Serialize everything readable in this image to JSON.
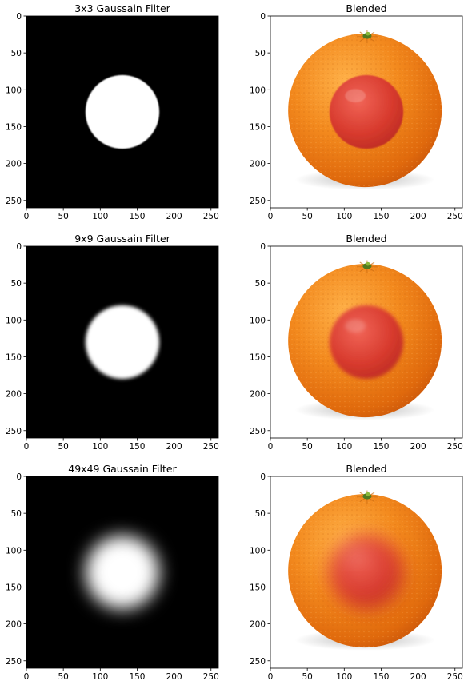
{
  "figure": {
    "panels": [
      {
        "title": "3x3 Gaussain Filter",
        "kind": "mask",
        "blur_sigma": 0.8,
        "x_ticks": [
          "0",
          "50",
          "100",
          "150",
          "200",
          "250"
        ],
        "y_ticks": [
          "0",
          "50",
          "100",
          "150",
          "200",
          "250"
        ]
      },
      {
        "title": "Blended",
        "kind": "blend",
        "blur_sigma": 0.8,
        "x_ticks": [
          "0",
          "50",
          "100",
          "150",
          "200",
          "250"
        ],
        "y_ticks": [
          "0",
          "50",
          "100",
          "150",
          "200",
          "250"
        ]
      },
      {
        "title": "9x9 Gaussain Filter",
        "kind": "mask",
        "blur_sigma": 2.5,
        "x_ticks": [
          "0",
          "50",
          "100",
          "150",
          "200",
          "250"
        ],
        "y_ticks": [
          "0",
          "50",
          "100",
          "150",
          "200",
          "250"
        ]
      },
      {
        "title": "Blended",
        "kind": "blend",
        "blur_sigma": 2.5,
        "x_ticks": [
          "0",
          "50",
          "100",
          "150",
          "200",
          "250"
        ],
        "y_ticks": [
          "0",
          "50",
          "100",
          "150",
          "200",
          "250"
        ]
      },
      {
        "title": "49x49 Gaussain Filter",
        "kind": "mask",
        "blur_sigma": 11,
        "x_ticks": [
          "0",
          "50",
          "100",
          "150",
          "200",
          "250"
        ],
        "y_ticks": [
          "0",
          "50",
          "100",
          "150",
          "200",
          "250"
        ]
      },
      {
        "title": "Blended",
        "kind": "blend",
        "blur_sigma": 11,
        "x_ticks": [
          "0",
          "50",
          "100",
          "150",
          "200",
          "250"
        ],
        "y_ticks": [
          "0",
          "50",
          "100",
          "150",
          "200",
          "250"
        ]
      }
    ],
    "image_extent": [
      0,
      260
    ],
    "mask_circle": {
      "center_x": 130,
      "center_y": 130,
      "radius": 50
    },
    "colors": {
      "mask_bg": "#000000",
      "mask_fg": "#ffffff",
      "orange": "#f2861c",
      "apple": "#d9302e"
    }
  }
}
